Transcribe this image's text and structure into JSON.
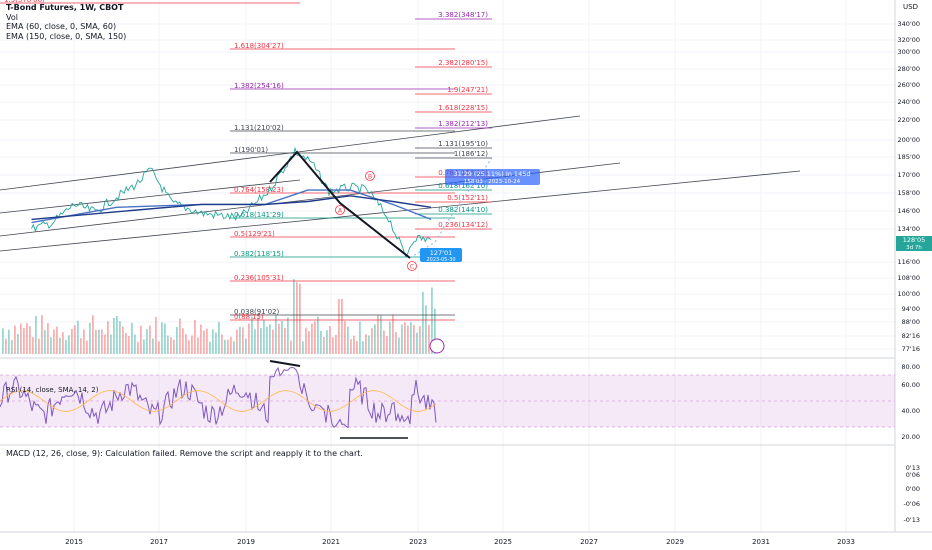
{
  "legend": {
    "title": "T-Bond Futures, 1W, CBOT",
    "vol": "Vol",
    "ema60": "EMA (60, close, 0, SMA, 60)",
    "ema150": "EMA (150, close, 0, SMA, 150)"
  },
  "price_axis": {
    "currency": "USD",
    "ticks": [
      "340'00",
      "320'00",
      "300'00",
      "280'00",
      "260'00",
      "240'00",
      "220'00",
      "200'00",
      "185'00",
      "170'00",
      "158'00",
      "146'00",
      "134'00",
      "116'00",
      "108'00",
      "100'00",
      "94'00",
      "88'00",
      "82'16",
      "77'16"
    ],
    "last_price": "128'05",
    "countdown": "3d 7h"
  },
  "rsi": {
    "label": "RSI (14, close, SMA, 14, 2)",
    "ticks": [
      "80.00",
      "60.00",
      "40.00",
      "20.00"
    ],
    "band": [
      30,
      70
    ]
  },
  "macd": {
    "label": "MACD (12, 26, close, 9): Calculation failed. Remove the script and reapply it to the chart.",
    "ticks": [
      "0'13",
      "0'06",
      "0'00",
      "-0'06",
      "-0'13"
    ]
  },
  "time_axis": [
    "2015",
    "2017",
    "2019",
    "2021",
    "2023",
    "2025",
    "2027",
    "2029",
    "2031",
    "2033"
  ],
  "fib_lower": [
    {
      "label": "1.9(378'06)",
      "color": "#f23645"
    },
    {
      "label": "1.618(304'27)",
      "color": "#f23645"
    },
    {
      "label": "1.382(254'16)",
      "color": "#9c27b0"
    },
    {
      "label": "1.131(210'02)",
      "color": "#434651"
    },
    {
      "label": "1(190'01)",
      "color": "#434651"
    },
    {
      "label": "0.764(158'23)",
      "color": "#f23645"
    },
    {
      "label": "0.618(141'29)",
      "color": "#089981"
    },
    {
      "label": "0.5(129'21)",
      "color": "#f23645"
    },
    {
      "label": "0.382(118'15)",
      "color": "#089981"
    },
    {
      "label": "0.236(105'31)",
      "color": "#f23645"
    },
    {
      "label": "0.038(91'02)",
      "color": "#434651"
    },
    {
      "label": "0(88'15)",
      "color": "#f23645"
    }
  ],
  "fib_upper": [
    {
      "label": "3.382(348'17)",
      "color": "#9c27b0"
    },
    {
      "label": "2.382(280'15)",
      "color": "#f23645"
    },
    {
      "label": "1.9(247'21)",
      "color": "#f23645"
    },
    {
      "label": "1.618(228'15)",
      "color": "#f23645"
    },
    {
      "label": "1.382(212'13)",
      "color": "#9c27b0"
    },
    {
      "label": "1.131(195'10)",
      "color": "#434651"
    },
    {
      "label": "1(186'12)",
      "color": "#434651"
    },
    {
      "label": "0.764(166'15)",
      "color": "#f23645"
    },
    {
      "label": "0.618(162'10)",
      "color": "#089981"
    },
    {
      "label": "0.5(152'11)",
      "color": "#f23645"
    },
    {
      "label": "0.382(144'10)",
      "color": "#089981"
    },
    {
      "label": "0.236(134'12)",
      "color": "#f23645"
    }
  ],
  "projection_box": {
    "line1": "31'29 (25.11%) In 145d",
    "line2": "158'03 · 2023-10-24"
  },
  "current_tag": {
    "line1": "127'01",
    "line2": "2023-05-30"
  },
  "wave_labels": [
    "A",
    "B",
    "C"
  ],
  "chart_data": {
    "type": "line",
    "title": "T-Bond Futures, 1W, CBOT",
    "x_range": [
      "2014",
      "2034"
    ],
    "y_scale": "log",
    "series": [
      {
        "name": "T-Bond Futures",
        "x": [
          2014.0,
          2014.5,
          2015.0,
          2015.5,
          2016.0,
          2016.5,
          2016.8,
          2017.3,
          2018.0,
          2018.9,
          2019.6,
          2020.2,
          2020.6,
          2021.0,
          2021.5,
          2021.9,
          2022.4,
          2022.8,
          2023.0,
          2023.4
        ],
        "y": [
          134,
          138,
          150,
          145,
          155,
          165,
          175,
          151,
          144,
          141,
          160,
          190,
          180,
          159,
          162,
          160,
          141,
          119,
          129,
          128
        ]
      },
      {
        "name": "EMA 60",
        "x": [
          2014.0,
          2016.0,
          2018.0,
          2019.5,
          2020.5,
          2021.5,
          2022.5,
          2023.4
        ],
        "y": [
          138,
          148,
          150,
          150,
          160,
          160,
          150,
          140
        ]
      },
      {
        "name": "EMA 150",
        "x": [
          2014.0,
          2016.0,
          2018.0,
          2019.5,
          2020.5,
          2021.5,
          2022.5,
          2023.4
        ],
        "y": [
          140,
          145,
          150,
          150,
          152,
          156,
          152,
          148
        ]
      }
    ],
    "rsi_range": [
      20,
      80
    ]
  }
}
